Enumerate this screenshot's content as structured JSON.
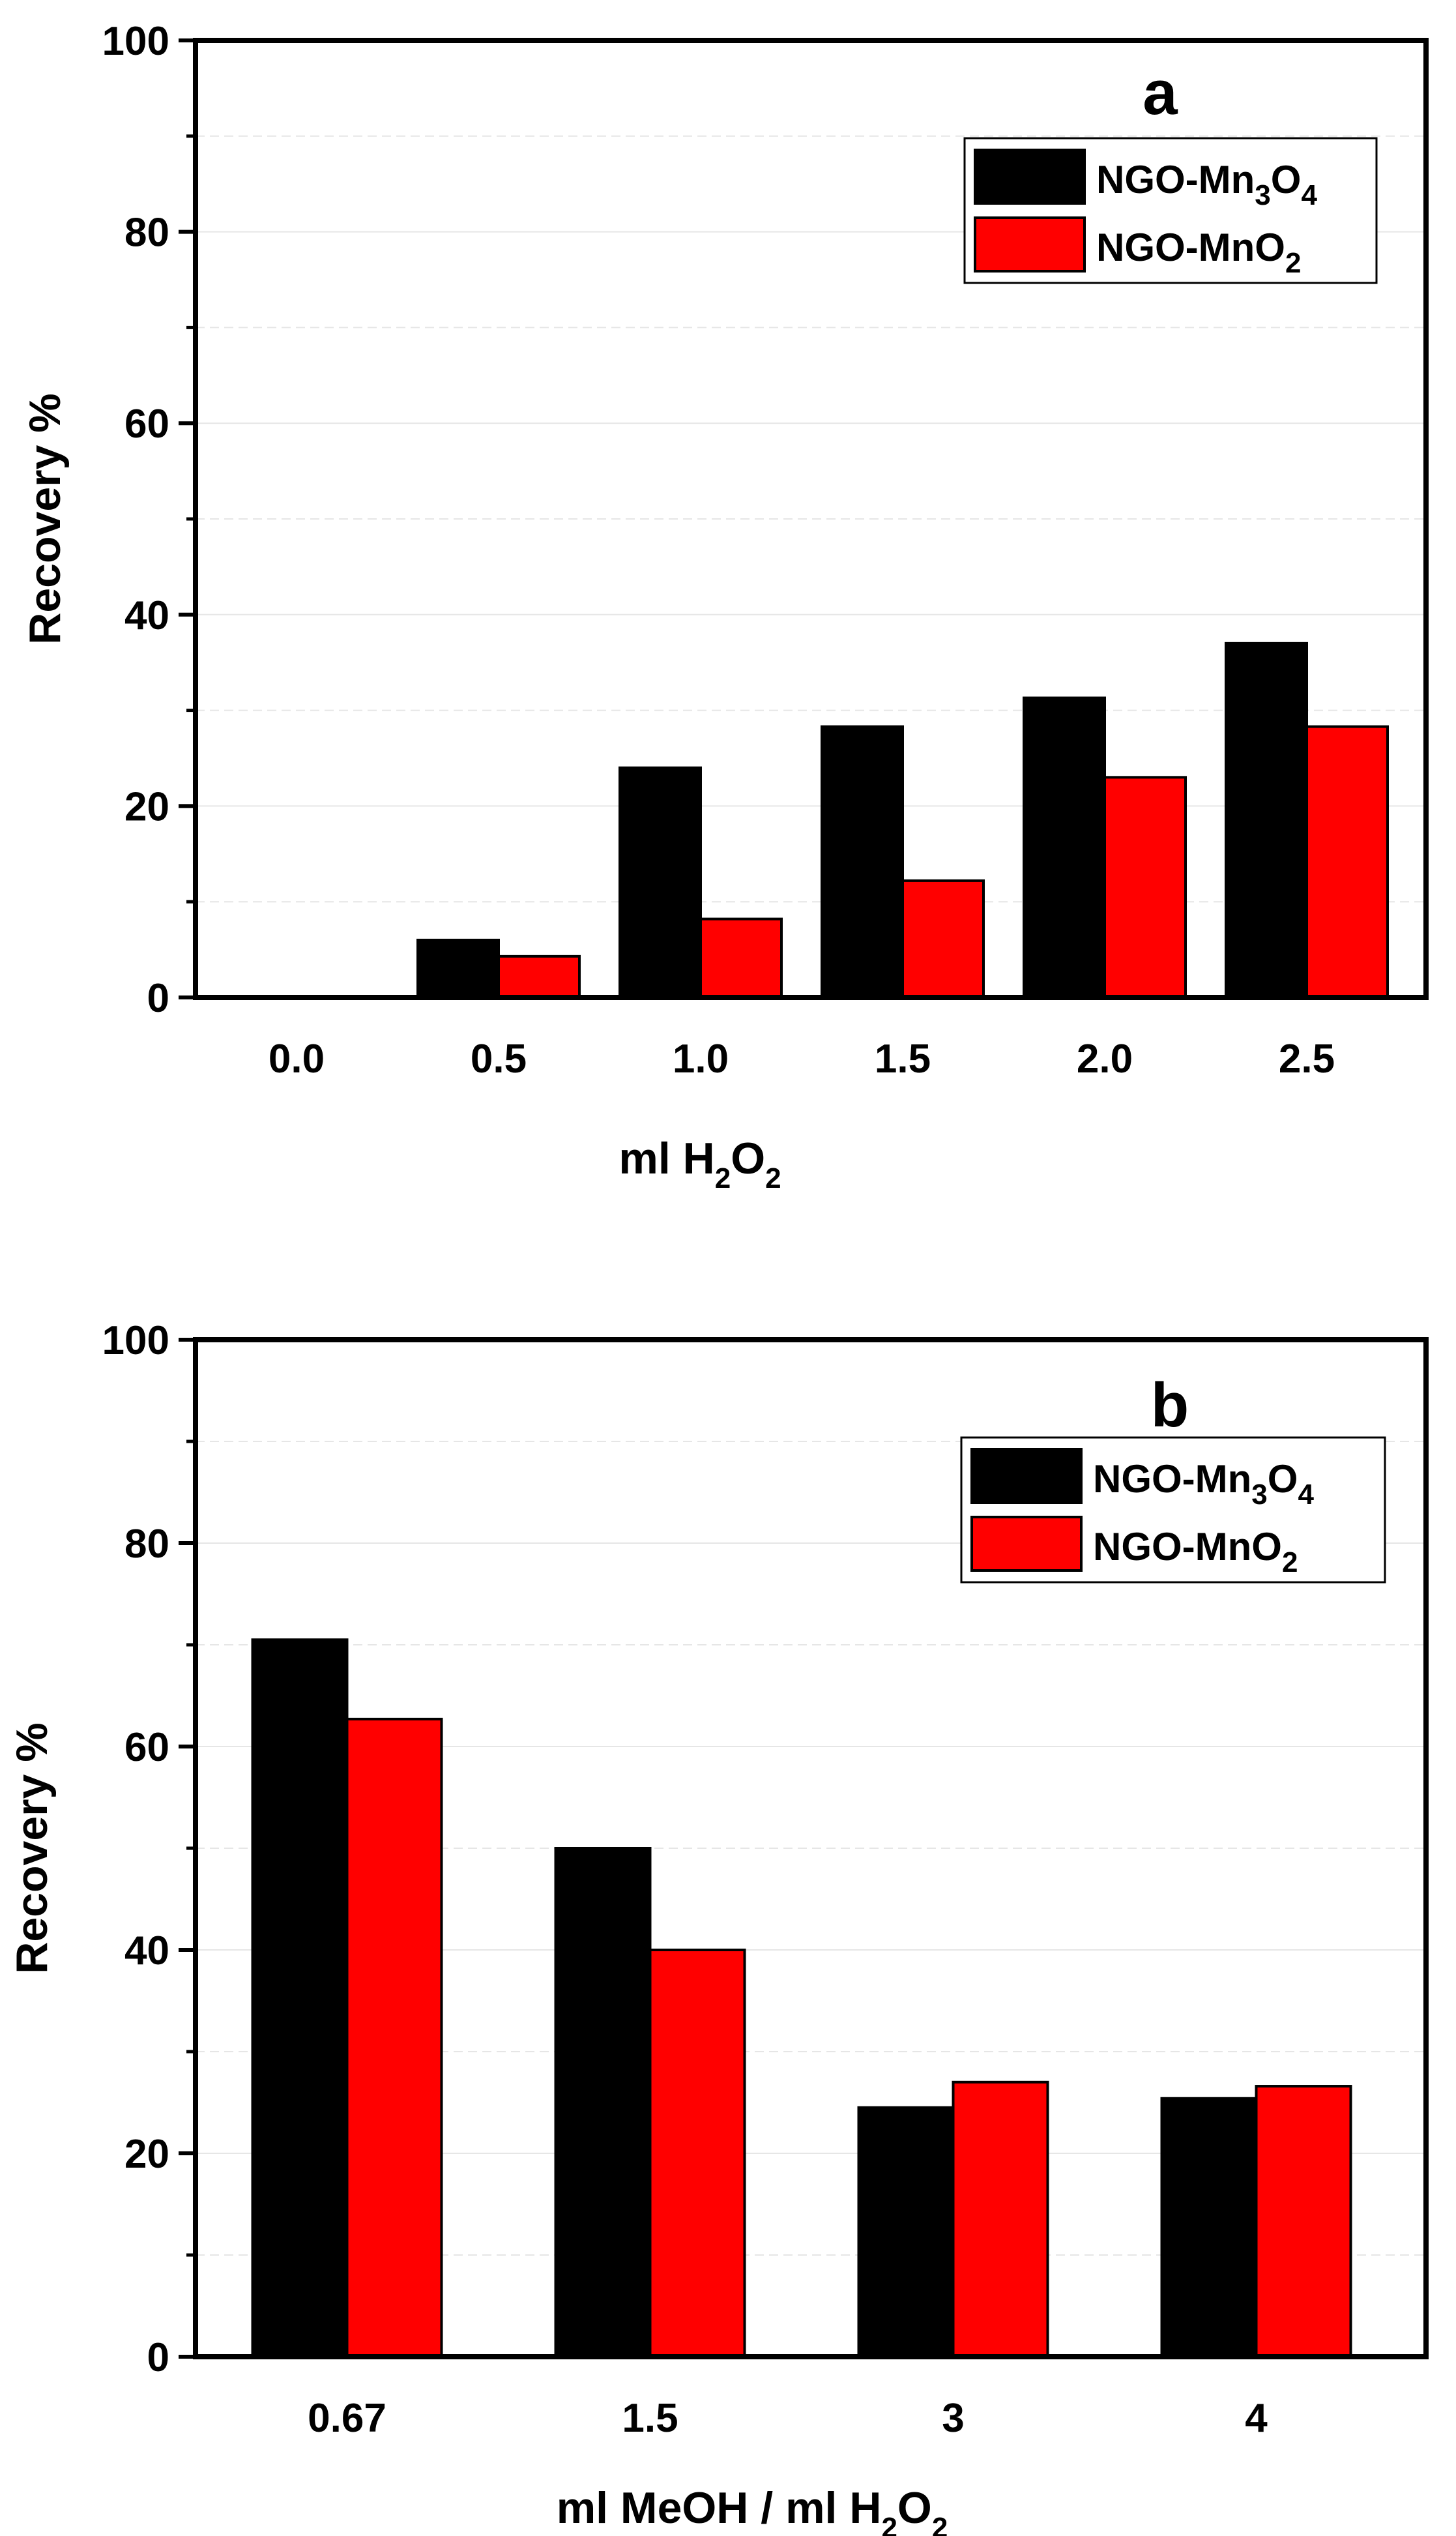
{
  "chart_data": [
    {
      "type": "bar",
      "panel_label": "a",
      "categories": [
        "0.0",
        "0.5",
        "1.0",
        "1.5",
        "2.0",
        "2.5"
      ],
      "series": [
        {
          "name": "NGO-Mn3O4",
          "name_parts": [
            "NGO-Mn",
            "3",
            "O",
            "4"
          ],
          "color": "#000000",
          "values": [
            0,
            6,
            24,
            28.3,
            31.3,
            37
          ]
        },
        {
          "name": "NGO-MnO2",
          "name_parts": [
            "NGO-MnO",
            "2"
          ],
          "color": "#ff0000",
          "values": [
            0,
            4.3,
            8.2,
            12.2,
            23,
            28.3
          ]
        }
      ],
      "xlabel": "ml  H2O2",
      "xlabel_parts": [
        "ml  H",
        "2",
        "O",
        "2"
      ],
      "ylabel": "Recovery %",
      "ylim": [
        0,
        100
      ],
      "yticks": [
        "0",
        "20",
        "40",
        "60",
        "80",
        "100"
      ],
      "grid": true,
      "legend": "top-right"
    },
    {
      "type": "bar",
      "panel_label": "b",
      "categories": [
        "0.67",
        "1.5",
        "3",
        "4"
      ],
      "series": [
        {
          "name": "NGO-Mn3O4",
          "name_parts": [
            "NGO-Mn",
            "3",
            "O",
            "4"
          ],
          "color": "#000000",
          "values": [
            70.5,
            50,
            24.5,
            25.4
          ]
        },
        {
          "name": "NGO-MnO2",
          "name_parts": [
            "NGO-MnO",
            "2"
          ],
          "color": "#ff0000",
          "values": [
            62.7,
            40,
            27,
            26.6
          ]
        }
      ],
      "xlabel": "ml MeOH / ml H2O2",
      "xlabel_parts": [
        "ml MeOH / ml H",
        "2",
        "O",
        "2"
      ],
      "ylabel": "Recovery %",
      "ylim": [
        0,
        100
      ],
      "yticks": [
        "0",
        "20",
        "40",
        "60",
        "80",
        "100"
      ],
      "grid": true,
      "legend": "top-right"
    }
  ]
}
